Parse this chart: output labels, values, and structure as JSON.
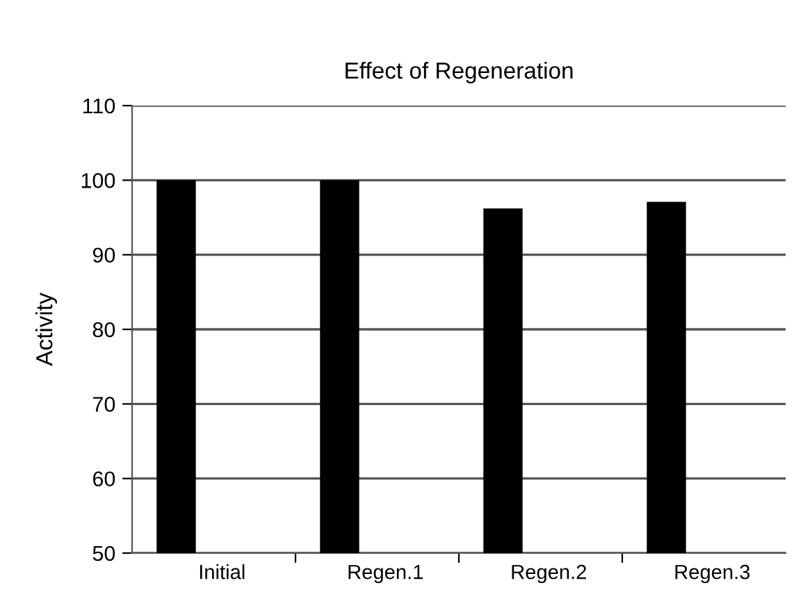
{
  "chart_data": {
    "type": "bar",
    "title": "Effect of Regeneration",
    "ylabel": "Activity",
    "categories": [
      "Initial",
      "Regen.1",
      "Regen.2",
      "Regen.3"
    ],
    "values": [
      100,
      100,
      96.2,
      97.1
    ],
    "color": "#000000",
    "ylim": [
      50,
      110
    ],
    "yticks": [
      50,
      60,
      70,
      80,
      90,
      100,
      110
    ],
    "grid": "y",
    "legend": false
  }
}
